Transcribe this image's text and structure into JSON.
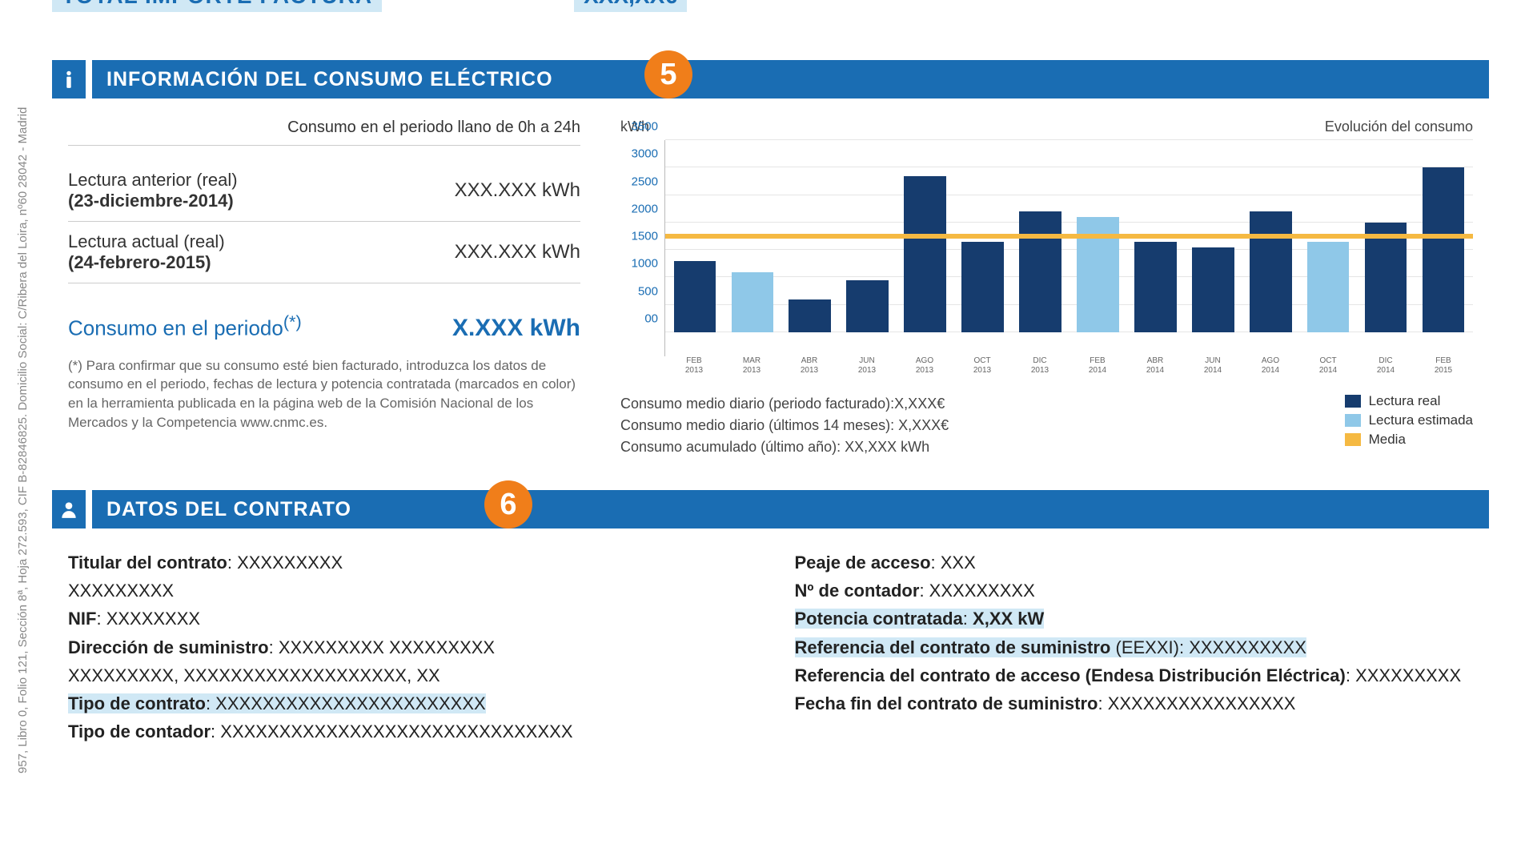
{
  "sidebar_text": "957, Libro 0, Folio 121, Sección 8ª, Hoja 272.593, CIF B-82846825. Domicilio Social: C/Ribera del Loira, nº60 28042 - Madrid",
  "total": {
    "label": "TOTAL IMPORTE FACTURA",
    "value": "XXX,XX€"
  },
  "section5": {
    "title": "INFORMACIÓN DEL CONSUMO ELÉCTRICO",
    "badge": "5",
    "periodo_header": "Consumo en el periodo llano de 0h a 24h",
    "lectura_anterior_label": "Lectura anterior (real)",
    "lectura_anterior_date": "(23-diciembre-2014)",
    "lectura_anterior_value": "XXX.XXX kWh",
    "lectura_actual_label": "Lectura actual  (real)",
    "lectura_actual_date": "(24-febrero-2015)",
    "lectura_actual_value": "XXX.XXX kWh",
    "consumo_periodo_label": "Consumo  en el periodo",
    "consumo_periodo_sup": "(*)",
    "consumo_periodo_value": "X.XXX kWh",
    "footnote": "(*) Para confirmar que su consumo esté bien facturado, introduzca los datos de consumo en el periodo, fechas de lectura y potencia contratada (marcados en color) en la herramienta publicada en la página web de la Comisión Nacional de los Mercados y la Competencia www.cnmc.es."
  },
  "chart": {
    "type": "bar",
    "y_label": "kWh",
    "title_right": "Evolución del consumo",
    "ylim": [
      0,
      3500
    ],
    "yticks": [
      0,
      500,
      1000,
      1500,
      2000,
      2500,
      3000,
      3500
    ],
    "ytick_labels": [
      "00",
      "500",
      "1000",
      "1500",
      "2000",
      "2500",
      "3000",
      "3500"
    ],
    "mean_value": 1750,
    "mean_color": "#f5b942",
    "grid_color": "#e5e5e5",
    "color_real": "#163c6e",
    "color_estimada": "#8fc8e8",
    "categories": [
      {
        "m": "FEB",
        "y": "2013"
      },
      {
        "m": "MAR",
        "y": "2013"
      },
      {
        "m": "ABR",
        "y": "2013"
      },
      {
        "m": "JUN",
        "y": "2013"
      },
      {
        "m": "AGO",
        "y": "2013"
      },
      {
        "m": "OCT",
        "y": "2013"
      },
      {
        "m": "DIC",
        "y": "2013"
      },
      {
        "m": "FEB",
        "y": "2014"
      },
      {
        "m": "ABR",
        "y": "2014"
      },
      {
        "m": "JUN",
        "y": "2014"
      },
      {
        "m": "AGO",
        "y": "2014"
      },
      {
        "m": "OCT",
        "y": "2014"
      },
      {
        "m": "DIC",
        "y": "2014"
      },
      {
        "m": "FEB",
        "y": "2015"
      }
    ],
    "values": [
      1300,
      1100,
      600,
      950,
      2850,
      1650,
      2200,
      2100,
      1650,
      1550,
      2200,
      1650,
      2000,
      3000
    ],
    "series": [
      "real",
      "est",
      "real",
      "real",
      "real",
      "real",
      "real",
      "est",
      "real",
      "real",
      "real",
      "est",
      "real",
      "real"
    ],
    "label_fontsize": 10,
    "tick_fontsize": 15,
    "tick_color": "#1a6db3"
  },
  "stats": {
    "l1": "Consumo medio diario (periodo facturado):X,XXX€",
    "l2": "Consumo medio diario (últimos 14 meses): X,XXX€",
    "l3": "Consumo acumulado (último año): XX,XXX kWh"
  },
  "legend": {
    "real": "Lectura real",
    "est": "Lectura estimada",
    "media": "Media"
  },
  "section6": {
    "title": "DATOS DEL CONTRATO",
    "badge": "6",
    "left": {
      "titular_label": "Titular del contrato",
      "titular_value": "XXXXXXXXX",
      "titular_line2": "XXXXXXXXX",
      "nif_label": "NIF",
      "nif_value": "XXXXXXXX",
      "dir_label": "Dirección de suministro",
      "dir_value": "XXXXXXXXX XXXXXXXXX",
      "dir_line2": "XXXXXXXXX, XXXXXXXXXXXXXXXXXXX, XX",
      "tipo_contrato_label": "Tipo de contrato",
      "tipo_contrato_value": "XXXXXXXXXXXXXXXXXXXXXXX",
      "tipo_contador_label": "Tipo de contador",
      "tipo_contador_value": "XXXXXXXXXXXXXXXXXXXXXXXXXXXXXX"
    },
    "right": {
      "peaje_label": "Peaje de acceso",
      "peaje_value": "XXX",
      "contador_label": "Nº de contador",
      "contador_value": "XXXXXXXXX",
      "potencia_label": "Potencia contratada",
      "potencia_value": "X,XX kW",
      "ref_sum_label": "Referencia del contrato de suministro",
      "ref_sum_paren": "(EEXXI)",
      "ref_sum_value": "XXXXXXXXXX",
      "ref_acc_label": "Referencia del contrato de acceso (Endesa Distribución Eléctrica)",
      "ref_acc_value": "XXXXXXXXX",
      "fecha_fin_label": "Fecha fin del contrato de suministro",
      "fecha_fin_value": "XXXXXXXXXXXXXXXX"
    }
  }
}
